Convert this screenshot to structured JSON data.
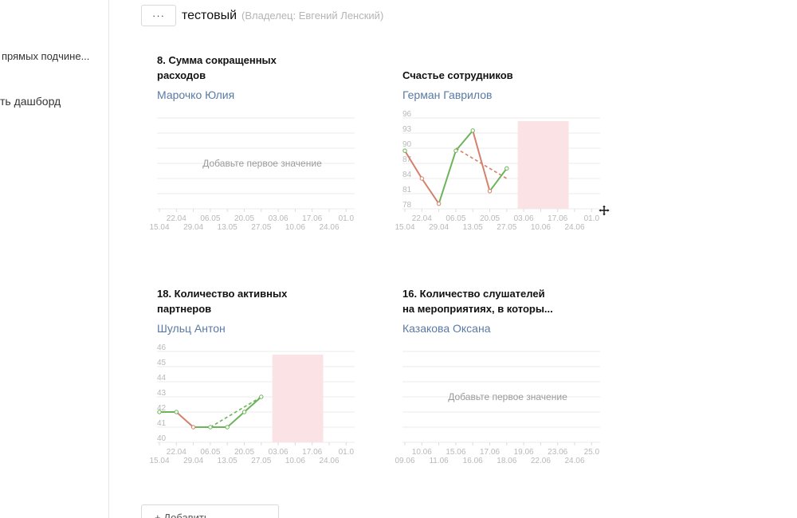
{
  "sidebar": {
    "items": [
      {
        "label": "прямых подчине..."
      },
      {
        "label": "ть дашборд"
      }
    ]
  },
  "header": {
    "more_label": "···",
    "title": "тестовый",
    "owner": "(Владелец: Евгений Ленский)"
  },
  "widgets": [
    {
      "title_lines": [
        "8. Сумма сокращенных",
        "расходов"
      ],
      "owner": "Марочко Юлия",
      "empty_text": "Добавьте первое значение"
    },
    {
      "title_lines": [
        "",
        "Счастье сотрудников"
      ],
      "owner": "Герман Гаврилов"
    },
    {
      "title_lines": [
        "18. Количество активных",
        "партнеров"
      ],
      "owner": "Шульц Антон"
    },
    {
      "title_lines": [
        "16. Количество слушателей",
        "на мероприятиях, в которы..."
      ],
      "owner": "Казакова Оксана",
      "empty_text": "Добавьте первое значение"
    }
  ],
  "chart_data": [
    {
      "type": "line",
      "x_top": [
        "22.04",
        "06.05",
        "20.05",
        "03.06",
        "17.06",
        "01.0"
      ],
      "x_bottom": [
        "15.04",
        "29.04",
        "13.05",
        "27.05",
        "10.06",
        "24.06"
      ],
      "y_ticks": [],
      "series": [],
      "empty": true
    },
    {
      "type": "line",
      "x_top": [
        "22.04",
        "06.05",
        "20.05",
        "03.06",
        "17.06",
        "01.0"
      ],
      "x_bottom": [
        "15.04",
        "29.04",
        "13.05",
        "27.05",
        "10.06",
        "24.06"
      ],
      "y_ticks": [
        "96",
        "93",
        "90",
        "87",
        "84",
        "81",
        "78"
      ],
      "ylim": [
        78,
        96
      ],
      "x_index_range": [
        0,
        11
      ],
      "series": [
        {
          "x": [
            0,
            1,
            2,
            3,
            4,
            5,
            6
          ],
          "values": [
            89.5,
            84,
            79,
            89.5,
            93.5,
            81.5,
            86
          ]
        }
      ],
      "plan": {
        "x": [
          3,
          6
        ],
        "values": [
          90,
          84
        ]
      },
      "highlight_x": [
        6.65,
        9.65
      ]
    },
    {
      "type": "line",
      "x_top": [
        "22.04",
        "06.05",
        "20.05",
        "03.06",
        "17.06",
        "01.0"
      ],
      "x_bottom": [
        "15.04",
        "29.04",
        "13.05",
        "27.05",
        "10.06",
        "24.06"
      ],
      "y_ticks": [
        "46",
        "45",
        "44",
        "43",
        "42",
        "41",
        "40"
      ],
      "ylim": [
        40,
        46
      ],
      "x_index_range": [
        0,
        11
      ],
      "series": [
        {
          "x": [
            0,
            1,
            2,
            3,
            4,
            5,
            6
          ],
          "values": [
            42,
            42,
            41,
            41,
            41,
            42,
            43
          ]
        }
      ],
      "plan": {
        "x": [
          3,
          6
        ],
        "values": [
          41,
          43
        ]
      },
      "highlight_x": [
        6.65,
        9.65
      ]
    },
    {
      "type": "line",
      "x_top": [
        "10.06",
        "15.06",
        "17.06",
        "19.06",
        "23.06",
        "25.0"
      ],
      "x_bottom": [
        "09.06",
        "11.06",
        "16.06",
        "18.06",
        "22.06",
        "24.06"
      ],
      "y_ticks": [],
      "series": [],
      "empty": true
    }
  ],
  "colors": {
    "up": "#6cb45a",
    "down": "#d4806c",
    "grid": "#ebebeb",
    "axis_text": "#b8b8b8",
    "highlight": "#fbe3e5",
    "owner_link": "#5a7aa3"
  },
  "add_button": {
    "label": "+ Добавить"
  },
  "icons": {
    "move": "move-icon"
  }
}
